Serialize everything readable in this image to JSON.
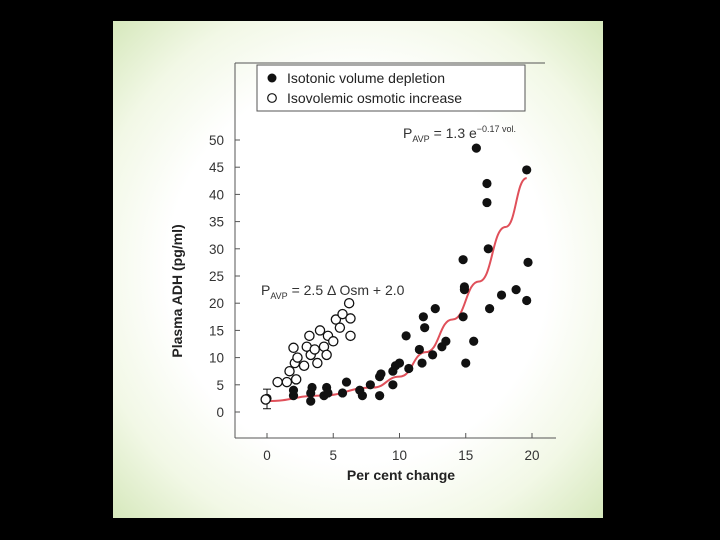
{
  "chart_data": {
    "type": "scatter",
    "xlabel": "Per cent change",
    "ylabel": "Plasma ADH (pg/ml)",
    "xlim": [
      -2.5,
      21
    ],
    "ylim": [
      -5,
      57
    ],
    "x_ticks": [
      "0",
      "5",
      "10",
      "15",
      "20"
    ],
    "y_ticks": [
      "0",
      "5",
      "10",
      "15",
      "20",
      "25",
      "30",
      "35",
      "40",
      "45",
      "50"
    ],
    "x_tick_values": [
      0,
      5,
      10,
      15,
      20
    ],
    "y_tick_values": [
      0,
      5,
      10,
      15,
      20,
      25,
      30,
      35,
      40,
      45,
      50
    ],
    "legend_position": "top-right",
    "series": [
      {
        "name": "Isotonic volume depletion",
        "marker": "filled-circle",
        "color": "#111111",
        "points": [
          [
            0,
            2.5
          ],
          [
            2,
            3
          ],
          [
            2,
            4
          ],
          [
            3.3,
            2
          ],
          [
            3.3,
            3.5
          ],
          [
            3.4,
            4.5
          ],
          [
            4.3,
            3
          ],
          [
            4.5,
            4.5
          ],
          [
            4.6,
            3.5
          ],
          [
            5.7,
            3.5
          ],
          [
            6,
            5.5
          ],
          [
            7,
            4
          ],
          [
            7.2,
            3
          ],
          [
            7.8,
            5
          ],
          [
            8.5,
            3
          ],
          [
            8.5,
            6.5
          ],
          [
            8.6,
            7
          ],
          [
            9.5,
            5
          ],
          [
            9.5,
            7.5
          ],
          [
            9.7,
            8.5
          ],
          [
            10,
            9
          ],
          [
            10.5,
            14
          ],
          [
            10.7,
            8
          ],
          [
            11.5,
            11.5
          ],
          [
            11.7,
            9
          ],
          [
            11.8,
            17.5
          ],
          [
            11.9,
            15.5
          ],
          [
            12.5,
            10.5
          ],
          [
            12.7,
            19
          ],
          [
            13.2,
            12
          ],
          [
            13.5,
            13
          ],
          [
            14.8,
            17.5
          ],
          [
            14.9,
            23
          ],
          [
            14.9,
            22.5
          ],
          [
            14.8,
            28
          ],
          [
            15,
            9
          ],
          [
            15.6,
            13
          ],
          [
            15.8,
            48.5
          ],
          [
            16.6,
            42
          ],
          [
            16.6,
            38.5
          ],
          [
            16.7,
            30
          ],
          [
            16.8,
            19
          ],
          [
            17.7,
            21.5
          ],
          [
            18.8,
            22.5
          ],
          [
            19.6,
            20.5
          ],
          [
            19.6,
            44.5
          ],
          [
            19.7,
            27.5
          ]
        ]
      },
      {
        "name": "Isovolemic osmotic increase",
        "marker": "open-circle",
        "color": "#111111",
        "points": [
          [
            -0.1,
            2.3
          ],
          [
            0.8,
            5.5
          ],
          [
            1.5,
            5.5
          ],
          [
            1.7,
            7.5
          ],
          [
            2,
            11.8
          ],
          [
            2.1,
            9
          ],
          [
            2.2,
            6
          ],
          [
            2.3,
            10
          ],
          [
            2.8,
            8.5
          ],
          [
            3,
            12
          ],
          [
            3.2,
            14
          ],
          [
            3.3,
            10.5
          ],
          [
            3.6,
            11.5
          ],
          [
            3.8,
            9
          ],
          [
            4,
            15
          ],
          [
            4.3,
            12
          ],
          [
            4.5,
            10.5
          ],
          [
            4.6,
            14
          ],
          [
            5,
            13
          ],
          [
            5.2,
            17
          ],
          [
            5.5,
            15.5
          ],
          [
            5.7,
            18
          ],
          [
            6.2,
            20
          ],
          [
            6.3,
            17.2
          ],
          [
            6.3,
            14
          ]
        ]
      }
    ],
    "curve": {
      "color": "#e0505a",
      "x_range": [
        0,
        19.6
      ],
      "points": [
        [
          0,
          2
        ],
        [
          4,
          3
        ],
        [
          8,
          4.5
        ],
        [
          10,
          6.5
        ],
        [
          12,
          11
        ],
        [
          14,
          17
        ],
        [
          16,
          24
        ],
        [
          18,
          34
        ],
        [
          19.6,
          43
        ]
      ]
    },
    "error_bar_at_origin": {
      "x": 0,
      "y": 2.5,
      "low": 0.6,
      "high": 4.2
    },
    "annotations": {
      "eq1": {
        "prefix": "P",
        "sub": "AVP",
        "mid": " = 1.3 e",
        "sup": "−0.17 vol."
      },
      "eq2": {
        "prefix": "P",
        "sub": "AVP",
        "mid": " = 2.5 Δ Osm + 2.0"
      }
    }
  }
}
